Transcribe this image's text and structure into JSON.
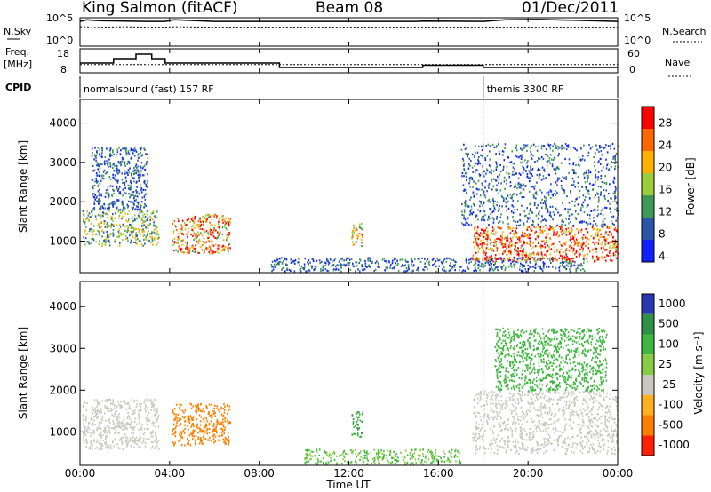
{
  "header": {
    "station": "King Salmon (fitACF)",
    "beam": "Beam 08",
    "date": "01/Dec/2011"
  },
  "panel_labels": {
    "nsky": "N.Sky",
    "nsearch": "N.Search",
    "freq_l1": "Freq.",
    "freq_l2": "[MHz]",
    "nave": "Nave",
    "cpid": "CPID"
  },
  "cpid_segments": [
    {
      "label": "normalsound (fast) 157 RF",
      "start_hour": 0
    },
    {
      "label": "themis 3300 RF",
      "start_hour": 18
    }
  ],
  "axes": {
    "xlabel": "Time UT",
    "xticks": [
      "00:00",
      "04:00",
      "08:00",
      "12:00",
      "16:00",
      "20:00",
      "00:00"
    ],
    "ylabel": "Slant Range [km]",
    "yticks": [
      "1000",
      "2000",
      "3000",
      "4000"
    ],
    "nsky_ticks": [
      "10^5",
      "10^0"
    ],
    "freq_ticks": [
      "18",
      "8"
    ],
    "nave_ticks": [
      "60",
      "0"
    ]
  },
  "colorbars": {
    "power": {
      "label": "Power [dB]",
      "ticks": [
        "28",
        "24",
        "20",
        "16",
        "12",
        "8",
        "4"
      ],
      "colors": [
        "#ff0000",
        "#ff6600",
        "#ffb000",
        "#9bcc3a",
        "#3f9a57",
        "#2a55a8",
        "#1020ff"
      ]
    },
    "velocity": {
      "label": "Velocity [m s⁻¹]",
      "ticks": [
        "1000",
        "500",
        "100",
        "25",
        "-25",
        "-100",
        "-500",
        "-1000"
      ],
      "colors": [
        "#2838b0",
        "#2f8f46",
        "#3fb63f",
        "#88cc44",
        "#c8c8c0",
        "#ffb020",
        "#ff8000",
        "#ff2000"
      ]
    }
  },
  "chart_data": [
    {
      "type": "line",
      "title": "N.Sky / N.Search",
      "x": [
        0,
        0.3,
        0.5,
        1.0,
        2.0,
        3.0,
        3.8,
        4.2,
        6.0,
        8.9,
        9.2,
        12.0,
        15.0,
        15.3,
        18.0,
        19.0,
        20.5,
        22.0,
        24.0
      ],
      "series": [
        {
          "name": "N.Sky",
          "values": [
            30000,
            60000,
            50000,
            40000,
            35000,
            30000,
            30000,
            60000,
            30000,
            30000,
            30000,
            30000,
            30000,
            35000,
            30000,
            60000,
            70000,
            50000,
            30000
          ]
        },
        {
          "name": "N.Search",
          "values": [
            3000,
            3000,
            2000,
            2500,
            3000,
            2500,
            2500,
            3000,
            2500,
            2500,
            2500,
            2500,
            2500,
            2500,
            2500,
            2500,
            2500,
            2500,
            2500
          ]
        }
      ],
      "ylim": [
        1,
        100000
      ]
    },
    {
      "type": "line",
      "title": "Freq / Nave",
      "x": [
        0,
        0.9,
        1.5,
        2.5,
        3.2,
        3.8,
        4.0,
        8.9,
        9.0,
        15.1,
        15.3,
        18.0,
        24.0
      ],
      "series": [
        {
          "name": "Freq.",
          "values": [
            12,
            12,
            14,
            16,
            14,
            12,
            12,
            10,
            10,
            10,
            11,
            10,
            10
          ]
        },
        {
          "name": "Nave",
          "values": [
            20,
            20,
            20,
            20,
            20,
            20,
            20,
            20,
            20,
            20,
            20,
            20,
            20
          ]
        }
      ],
      "ylim_freq": [
        8,
        18
      ],
      "ylim_nave": [
        0,
        60
      ]
    },
    {
      "type": "heatmap",
      "title": "Power [dB]",
      "xlim": [
        0,
        24
      ],
      "ylim": [
        200,
        4600
      ],
      "xlabel": "Time UT",
      "ylabel": "Slant Range [km]",
      "regions": [
        {
          "t": [
            0.1,
            3.5
          ],
          "r": [
            900,
            1800
          ],
          "value": 14
        },
        {
          "t": [
            0.5,
            3.0
          ],
          "r": [
            1800,
            3400
          ],
          "value": 8
        },
        {
          "t": [
            4.1,
            6.7
          ],
          "r": [
            700,
            1700
          ],
          "value": 22
        },
        {
          "t": [
            12.1,
            12.6
          ],
          "r": [
            900,
            1500
          ],
          "value": 18
        },
        {
          "t": [
            8.5,
            22.5
          ],
          "r": [
            250,
            600
          ],
          "value": 8
        },
        {
          "t": [
            17.5,
            24.0
          ],
          "r": [
            500,
            1400
          ],
          "value": 26
        },
        {
          "t": [
            17.0,
            24.0
          ],
          "r": [
            1400,
            3500
          ],
          "value": 8
        }
      ]
    },
    {
      "type": "heatmap",
      "title": "Velocity [m s⁻¹]",
      "xlim": [
        0,
        24
      ],
      "ylim": [
        200,
        4600
      ],
      "xlabel": "Time UT",
      "ylabel": "Slant Range [km]",
      "regions": [
        {
          "t": [
            0.1,
            3.5
          ],
          "r": [
            600,
            1800
          ],
          "value": 0
        },
        {
          "t": [
            4.1,
            6.7
          ],
          "r": [
            700,
            1700
          ],
          "value": -150
        },
        {
          "t": [
            12.1,
            12.6
          ],
          "r": [
            900,
            1500
          ],
          "value": 300
        },
        {
          "t": [
            10.0,
            17.0
          ],
          "r": [
            250,
            600
          ],
          "value": 60
        },
        {
          "t": [
            17.5,
            24.0
          ],
          "r": [
            500,
            2000
          ],
          "value": 0
        },
        {
          "t": [
            18.5,
            23.5
          ],
          "r": [
            2000,
            3500
          ],
          "value": 200
        }
      ]
    }
  ]
}
